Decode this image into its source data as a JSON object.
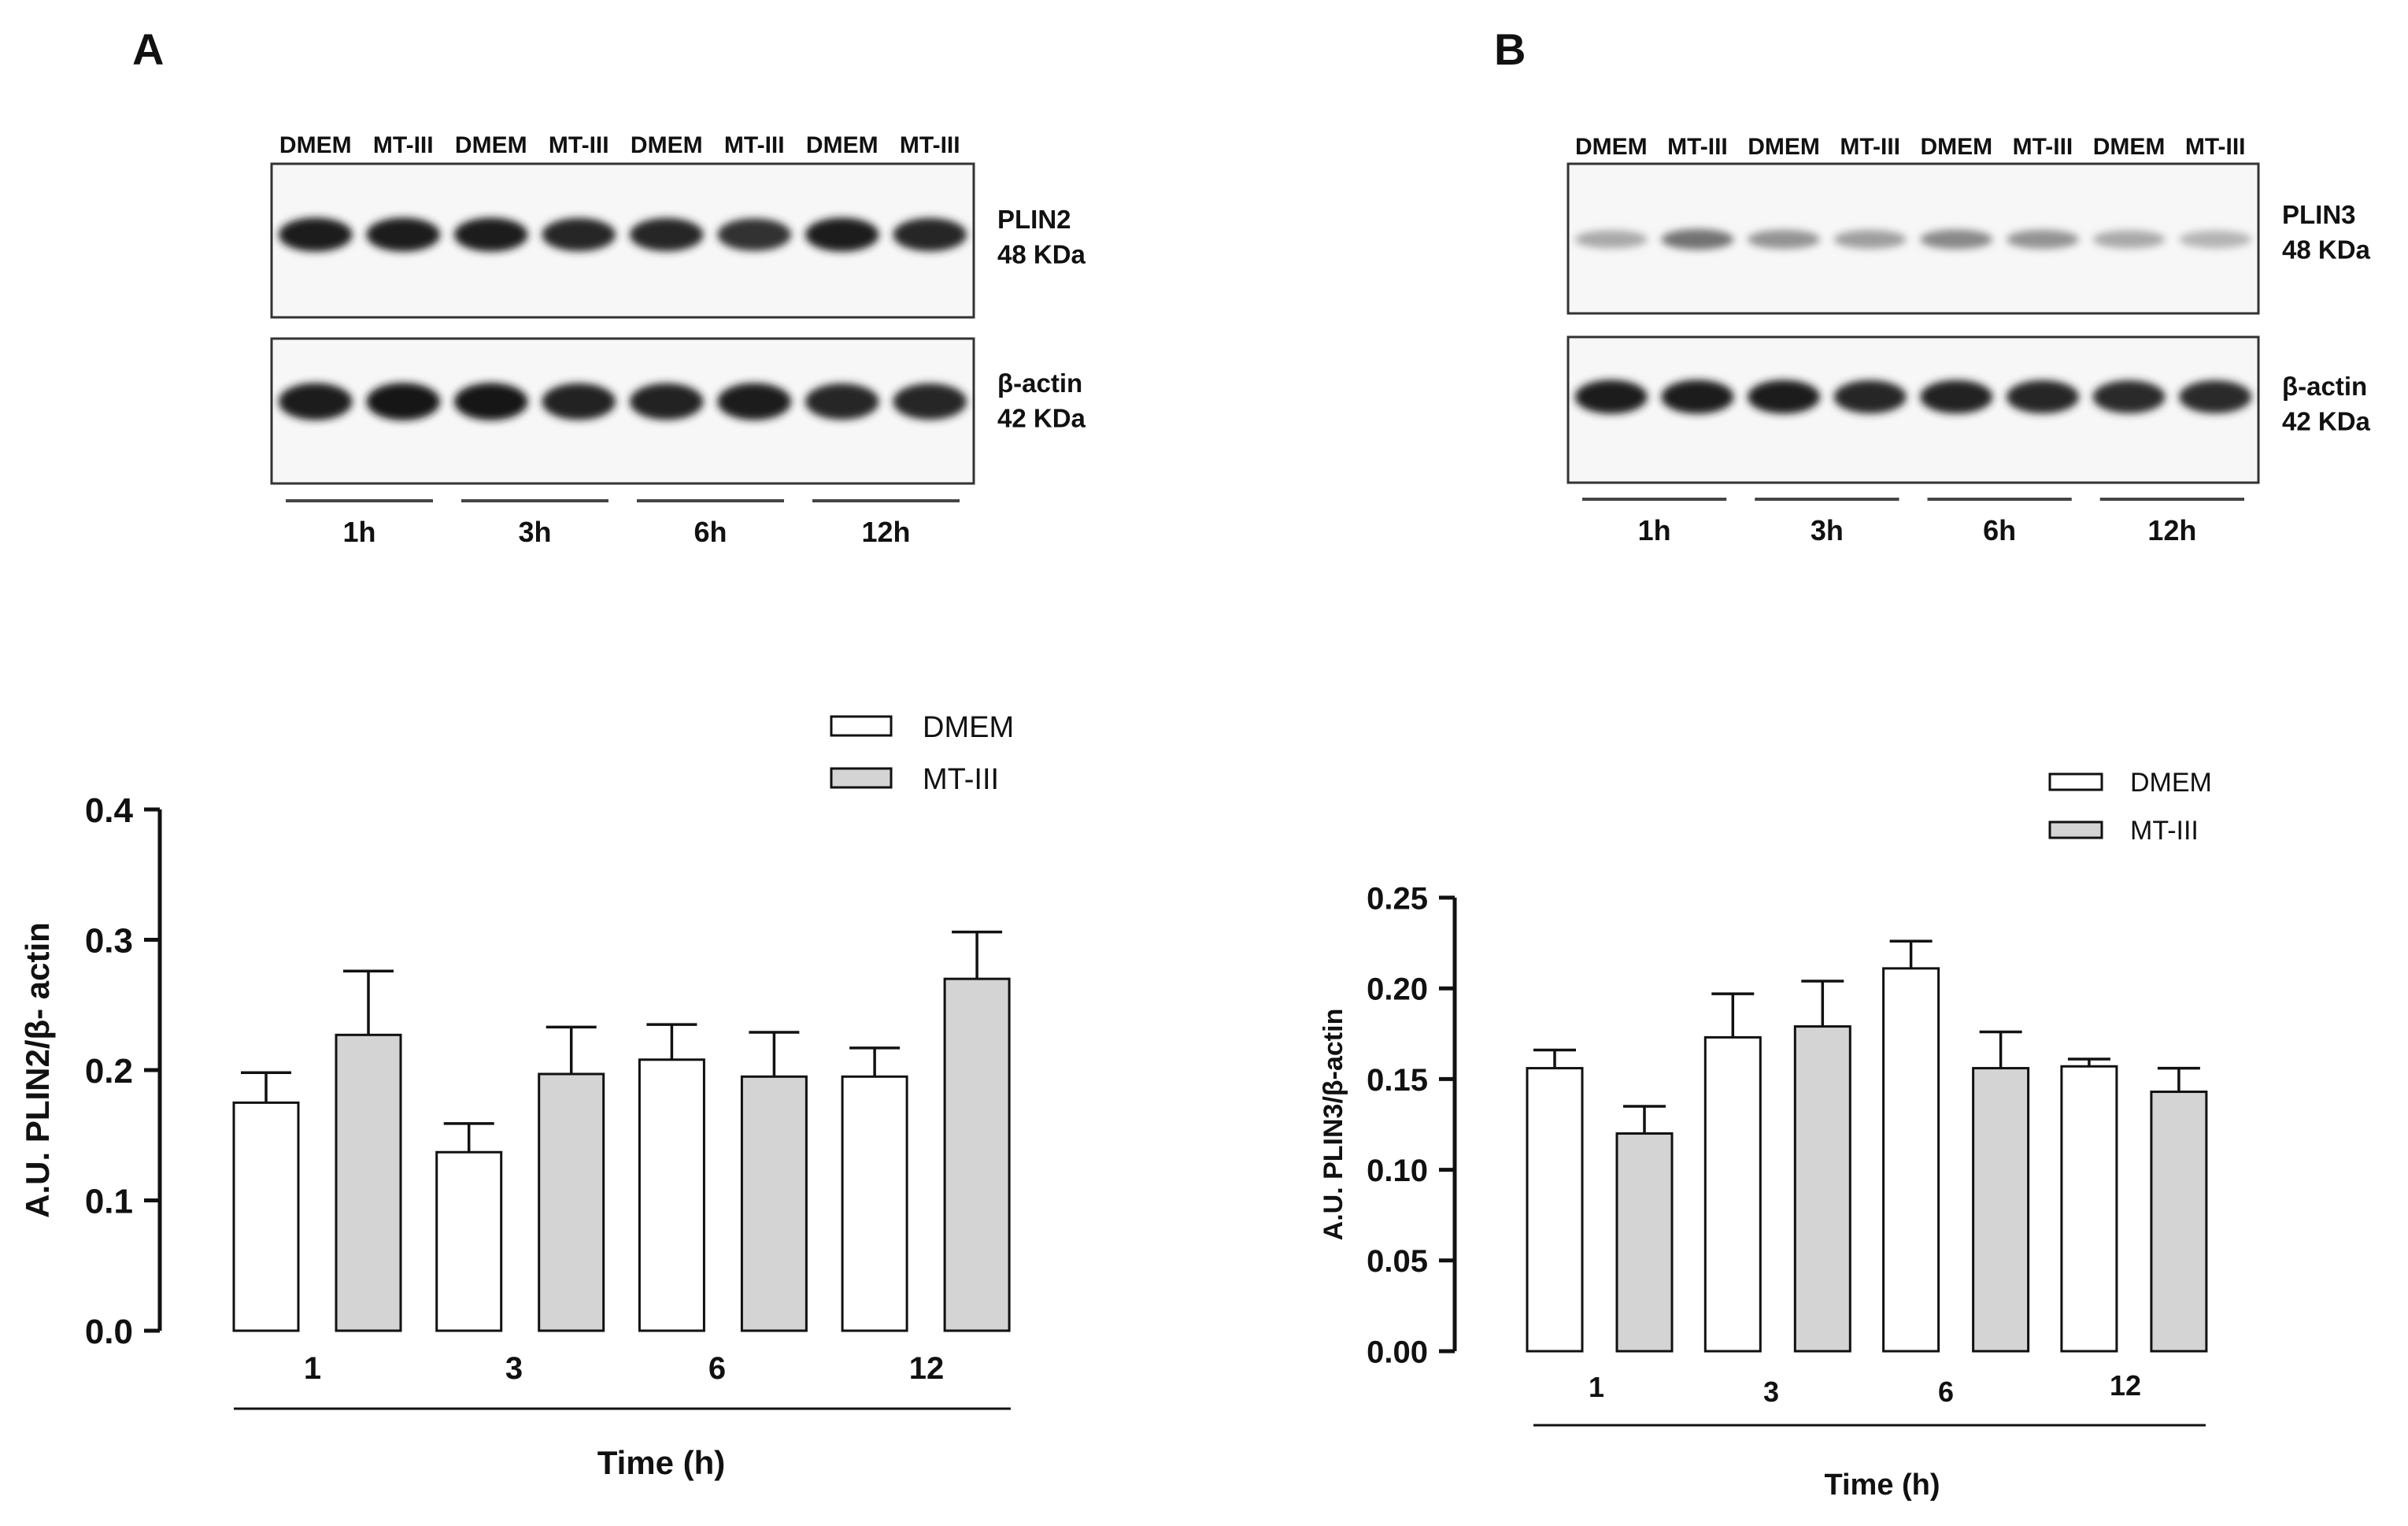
{
  "panels": {
    "a_letter": "A",
    "b_letter": "B"
  },
  "blots": [
    {
      "lanes": [
        "DMEM",
        "MT-III",
        "DMEM",
        "MT-III",
        "DMEM",
        "MT-III",
        "DMEM",
        "MT-III"
      ],
      "bands": [
        {
          "protein": "PLIN2",
          "size": "48 KDa",
          "intensities": [
            0.95,
            0.95,
            0.95,
            0.9,
            0.9,
            0.85,
            0.95,
            0.9
          ]
        },
        {
          "protein": "β-actin",
          "size": "42 KDa",
          "intensities": [
            0.95,
            0.98,
            0.97,
            0.92,
            0.92,
            0.95,
            0.9,
            0.9
          ]
        }
      ],
      "time_labels": [
        "1h",
        "3h",
        "6h",
        "12h"
      ]
    },
    {
      "lanes": [
        "DMEM",
        "MT-III",
        "DMEM",
        "MT-III",
        "DMEM",
        "MT-III",
        "DMEM",
        "MT-III"
      ],
      "bands": [
        {
          "protein": "PLIN3",
          "size": "48 KDa",
          "intensities": [
            0.3,
            0.55,
            0.4,
            0.35,
            0.45,
            0.4,
            0.3,
            0.25
          ]
        },
        {
          "protein": "β-actin",
          "size": "42 KDa",
          "intensities": [
            0.95,
            0.95,
            0.93,
            0.9,
            0.92,
            0.9,
            0.88,
            0.88
          ]
        }
      ],
      "time_labels": [
        "1h",
        "3h",
        "6h",
        "12h"
      ]
    }
  ],
  "legend": {
    "left": [
      "DMEM",
      "MT-III"
    ],
    "right": [
      "DMEM",
      "MT-III"
    ]
  },
  "colors": {
    "dmem": "#ffffff",
    "mt3": "#d4d4d4",
    "stroke": "#111111"
  },
  "chart_data": [
    {
      "type": "bar",
      "title": "",
      "xlabel": "Time (h)",
      "ylabel": "A.U. PLIN2/β- actin",
      "categories": [
        "1",
        "3",
        "6",
        "12"
      ],
      "ylim": [
        0,
        0.4
      ],
      "yticks": [
        "0.0",
        "0.1",
        "0.2",
        "0.3",
        "0.4"
      ],
      "series": [
        {
          "name": "DMEM",
          "values": [
            0.175,
            0.137,
            0.208,
            0.195
          ],
          "errors": [
            0.023,
            0.022,
            0.027,
            0.022
          ]
        },
        {
          "name": "MT-III",
          "values": [
            0.227,
            0.197,
            0.195,
            0.27
          ],
          "errors": [
            0.049,
            0.036,
            0.034,
            0.036
          ]
        }
      ]
    },
    {
      "type": "bar",
      "title": "",
      "xlabel": "Time (h)",
      "ylabel": "A.U. PLIN3/β-actin",
      "categories": [
        "1",
        "3",
        "6",
        "12"
      ],
      "ylim": [
        0,
        0.25
      ],
      "yticks": [
        "0.00",
        "0.05",
        "0.10",
        "0.15",
        "0.20",
        "0.25"
      ],
      "series": [
        {
          "name": "DMEM",
          "values": [
            0.156,
            0.173,
            0.211,
            0.157
          ],
          "errors": [
            0.01,
            0.024,
            0.015,
            0.004
          ]
        },
        {
          "name": "MT-III",
          "values": [
            0.12,
            0.179,
            0.156,
            0.143
          ],
          "errors": [
            0.015,
            0.025,
            0.02,
            0.013
          ]
        }
      ]
    }
  ]
}
